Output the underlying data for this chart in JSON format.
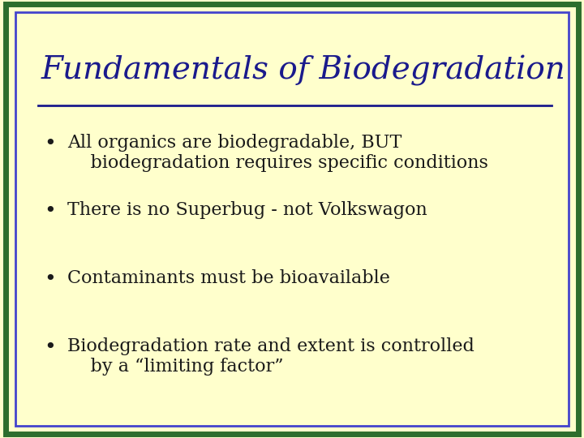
{
  "title": "Fundamentals of Biodegradation",
  "title_color": "#1a1a8c",
  "title_fontsize": 28,
  "background_color": "#ffffcc",
  "border_color_outer": "#2d6e2d",
  "border_color_inner": "#4444cc",
  "bullet_points": [
    "All organics are biodegradable, BUT\n    biodegradation requires specific conditions",
    "There is no Superbug - not Volkswagon",
    "Contaminants must be bioavailable",
    "Biodegradation rate and extent is controlled\n    by a “limiting factor”"
  ],
  "bullet_color": "#1a1a1a",
  "bullet_fontsize": 16,
  "figsize": [
    7.2,
    5.4
  ],
  "dpi": 100
}
